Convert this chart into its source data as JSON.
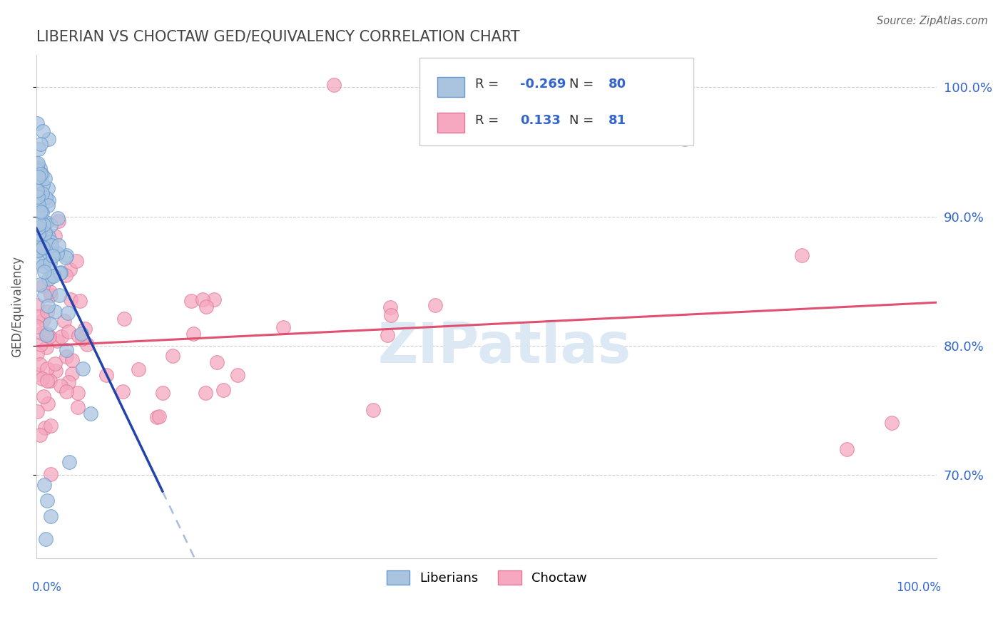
{
  "title": "LIBERIAN VS CHOCTAW GED/EQUIVALENCY CORRELATION CHART",
  "source": "Source: ZipAtlas.com",
  "ylabel": "GED/Equivalency",
  "y_ticks": [
    0.7,
    0.8,
    0.9,
    1.0
  ],
  "y_tick_labels": [
    "70.0%",
    "80.0%",
    "90.0%",
    "100.0%"
  ],
  "x_range": [
    0.0,
    1.0
  ],
  "y_range": [
    0.635,
    1.025
  ],
  "R_liberian": -0.269,
  "N_liberian": 80,
  "R_choctaw": 0.133,
  "N_choctaw": 81,
  "liberian_color": "#aac4e0",
  "liberian_edge_color": "#6699cc",
  "choctaw_color": "#f5a8c0",
  "choctaw_edge_color": "#e07898",
  "liberian_line_color": "#2244aa",
  "choctaw_line_color": "#e05070",
  "dashed_line_color": "#aabbdd",
  "watermark_color": "#dde8f5",
  "legend_text_color": "#3366cc",
  "legend_label_color": "#333333",
  "background_color": "#ffffff"
}
